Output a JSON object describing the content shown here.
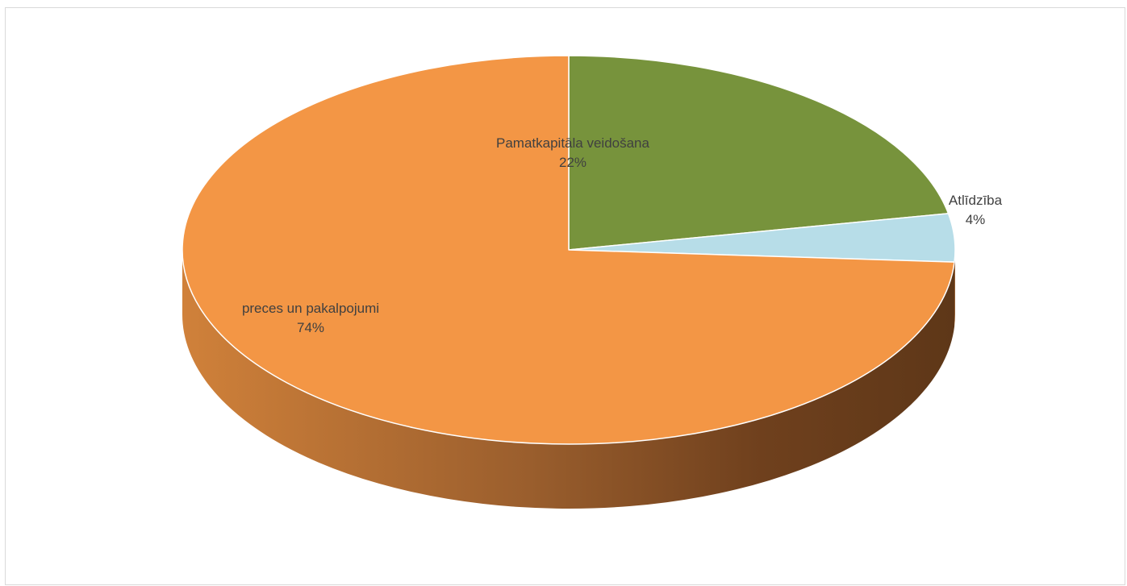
{
  "chart_data": {
    "type": "pie",
    "title": "",
    "slices": [
      {
        "name": "Pamatkapitāla veidošana",
        "value": 22,
        "label": "22%",
        "color": "#77933C"
      },
      {
        "name": "Atlīdzība",
        "value": 4,
        "label": "4%",
        "color": "#B7DDE8"
      },
      {
        "name": "preces un pakalpojumi",
        "value": 74,
        "label": "74%",
        "color": "#F39645"
      }
    ],
    "legend": "none",
    "style": "3d"
  }
}
